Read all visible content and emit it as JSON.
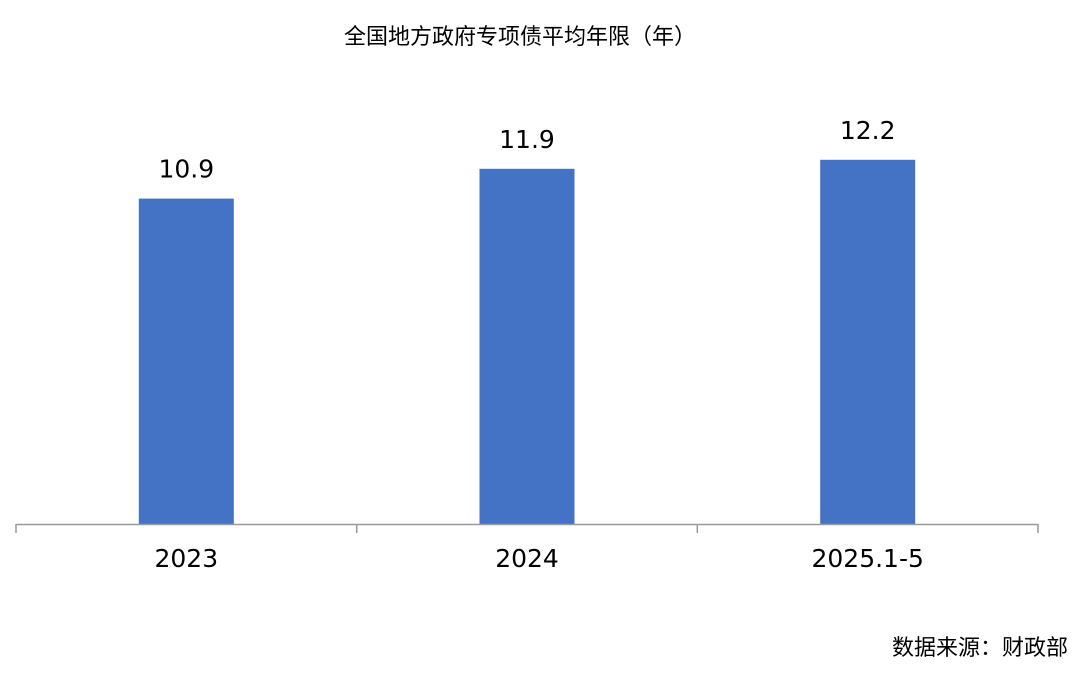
{
  "chart_data": {
    "type": "bar",
    "title": "全国地方政府专项债平均年限（年）",
    "categories": [
      "2023",
      "2024",
      "2025.1-5"
    ],
    "values": [
      10.9,
      11.9,
      12.2
    ],
    "value_labels": [
      "10.9",
      "11.9",
      "12.2"
    ],
    "xlabel": "",
    "ylabel": "",
    "grid": false,
    "legend": "none",
    "bar_color": "#4472C4",
    "axis_color": "#999999"
  },
  "footer": {
    "source": "数据来源：财政部"
  }
}
